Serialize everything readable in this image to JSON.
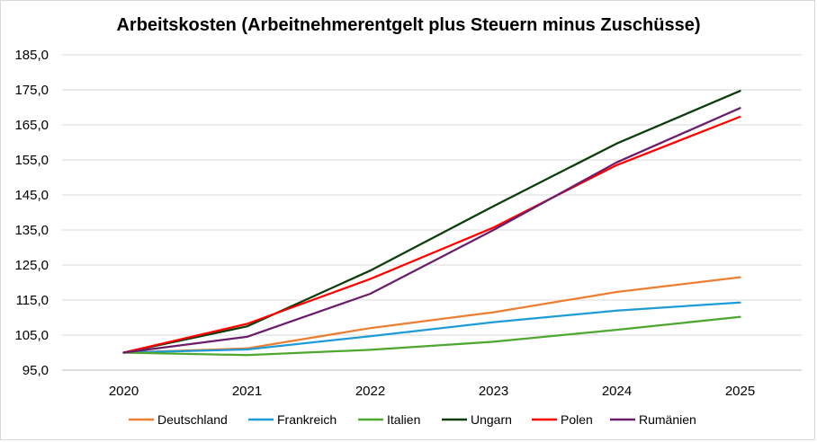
{
  "chart_data": {
    "type": "line",
    "title": "Arbeitskosten (Arbeitnehmerentgelt plus Steuern minus Zuschüsse)",
    "xlabel": "",
    "ylabel": "",
    "categories": [
      "2020",
      "2021",
      "2022",
      "2023",
      "2024",
      "2025"
    ],
    "ylim": [
      95,
      185
    ],
    "yticks": [
      95,
      105,
      115,
      125,
      135,
      145,
      155,
      165,
      175,
      185
    ],
    "ytick_labels": [
      "95,0",
      "105,0",
      "115,0",
      "125,0",
      "135,0",
      "145,0",
      "155,0",
      "165,0",
      "175,0",
      "185,0"
    ],
    "grid": true,
    "legend_position": "bottom",
    "series": [
      {
        "name": "Deutschland",
        "color": "#ED7D31",
        "values": [
          100.0,
          101.2,
          107.0,
          111.5,
          117.3,
          121.5
        ]
      },
      {
        "name": "Frankreich",
        "color": "#1F9BD7",
        "values": [
          100.0,
          100.9,
          104.7,
          108.7,
          112.0,
          114.3
        ]
      },
      {
        "name": "Italien",
        "color": "#4EA72E",
        "values": [
          100.0,
          99.3,
          100.8,
          103.1,
          106.5,
          110.2
        ]
      },
      {
        "name": "Ungarn",
        "color": "#0B3D0B",
        "values": [
          100.0,
          107.5,
          123.4,
          141.8,
          159.7,
          174.7
        ]
      },
      {
        "name": "Polen",
        "color": "#FF0000",
        "values": [
          100.0,
          108.2,
          121.0,
          135.7,
          153.5,
          167.3
        ]
      },
      {
        "name": "Rumänien",
        "color": "#6B1D6B",
        "values": [
          100.0,
          104.5,
          116.8,
          135.0,
          154.3,
          169.8
        ]
      }
    ]
  }
}
